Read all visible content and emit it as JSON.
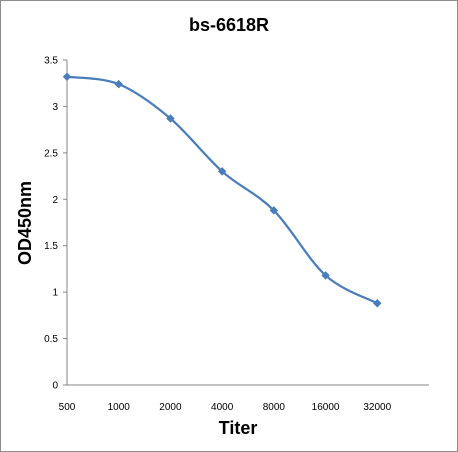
{
  "chart_data": {
    "type": "line",
    "title": "bs-6618R",
    "xlabel": "Titer",
    "ylabel": "OD450nm",
    "categories": [
      "500",
      "1000",
      "2000",
      "4000",
      "8000",
      "16000",
      "32000"
    ],
    "series": [
      {
        "values": [
          3.32,
          3.24,
          2.87,
          2.3,
          1.88,
          1.18,
          0.88
        ],
        "color": "#4a7ebb",
        "marker": "diamond",
        "smooth": true
      }
    ],
    "ylim": [
      0,
      3.5
    ],
    "yticks": [
      "0",
      "0.5",
      "1",
      "1.5",
      "2",
      "2.5",
      "3",
      "3.5"
    ],
    "grid": false,
    "legend": "none"
  }
}
